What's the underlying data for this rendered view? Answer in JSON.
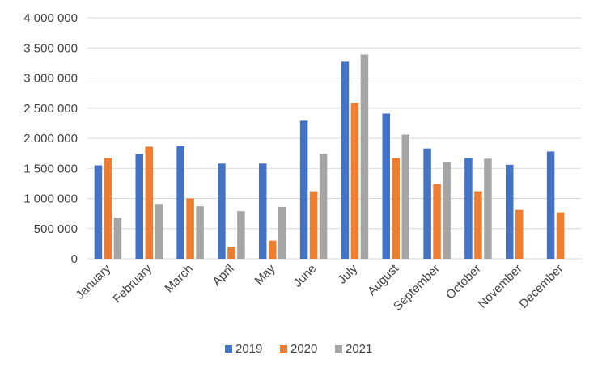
{
  "chart_data": {
    "type": "bar",
    "title": "",
    "xlabel": "",
    "ylabel": "",
    "categories": [
      "January",
      "February",
      "March",
      "April",
      "May",
      "June",
      "July",
      "August",
      "September",
      "October",
      "November",
      "December"
    ],
    "series": [
      {
        "name": "2019",
        "color": "#4472C4",
        "values": [
          1550000,
          1740000,
          1870000,
          1580000,
          1580000,
          2290000,
          3270000,
          2410000,
          1830000,
          1670000,
          1560000,
          1780000
        ]
      },
      {
        "name": "2020",
        "color": "#ED7D31",
        "values": [
          1670000,
          1860000,
          1000000,
          200000,
          300000,
          1120000,
          2590000,
          1670000,
          1240000,
          1120000,
          810000,
          770000
        ]
      },
      {
        "name": "2021",
        "color": "#A5A5A5",
        "values": [
          680000,
          910000,
          870000,
          790000,
          860000,
          1740000,
          3390000,
          2060000,
          1610000,
          1660000,
          null,
          null
        ]
      }
    ],
    "ylim": [
      0,
      4000000
    ],
    "yticks": [
      {
        "value": 0,
        "label": "0"
      },
      {
        "value": 500000,
        "label": "500 000"
      },
      {
        "value": 1000000,
        "label": "1 000 000"
      },
      {
        "value": 1500000,
        "label": "1 500 000"
      },
      {
        "value": 2000000,
        "label": "2 000 000"
      },
      {
        "value": 2500000,
        "label": "2 500 000"
      },
      {
        "value": 3000000,
        "label": "3 000 000"
      },
      {
        "value": 3500000,
        "label": "3 500 000"
      },
      {
        "value": 4000000,
        "label": "4 000 000"
      }
    ],
    "grid": true,
    "legend_position": "bottom",
    "gridline_color": "#D9D9D9"
  }
}
